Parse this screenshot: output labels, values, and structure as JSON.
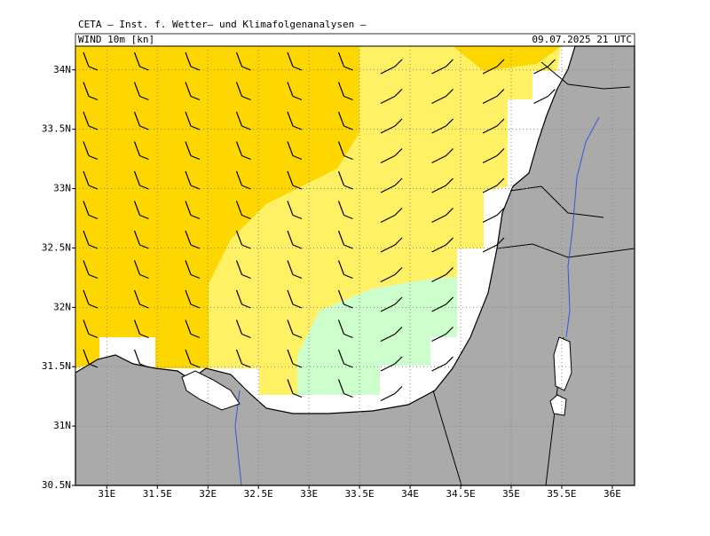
{
  "header": {
    "title": "CETA – Inst. f. Wetter– und Klimafolgenanalysen –",
    "field": "WIND 10m [kn]",
    "valid_time": "09.07.2025 21 UTC"
  },
  "map": {
    "xlim": [
      30.69,
      36.22
    ],
    "ylim": [
      30.5,
      34.2
    ],
    "xticks": [
      {
        "value": 31,
        "label": "31E"
      },
      {
        "value": 31.5,
        "label": "31.5E"
      },
      {
        "value": 32,
        "label": "32E"
      },
      {
        "value": 32.5,
        "label": "32.5E"
      },
      {
        "value": 33,
        "label": "33E"
      },
      {
        "value": 33.5,
        "label": "33.5E"
      },
      {
        "value": 34,
        "label": "34E"
      },
      {
        "value": 34.5,
        "label": "34.5E"
      },
      {
        "value": 35,
        "label": "35E"
      },
      {
        "value": 35.5,
        "label": "35.5E"
      },
      {
        "value": 36,
        "label": "36E"
      }
    ],
    "yticks": [
      {
        "value": 30.5,
        "label": "30.5N"
      },
      {
        "value": 31,
        "label": "31N"
      },
      {
        "value": 31.5,
        "label": "31.5N"
      },
      {
        "value": 32,
        "label": "32N"
      },
      {
        "value": 32.5,
        "label": "32.5N"
      },
      {
        "value": 33,
        "label": "33N"
      },
      {
        "value": 33.5,
        "label": "33.5N"
      },
      {
        "value": 34,
        "label": "34N"
      }
    ],
    "grid": true
  }
}
